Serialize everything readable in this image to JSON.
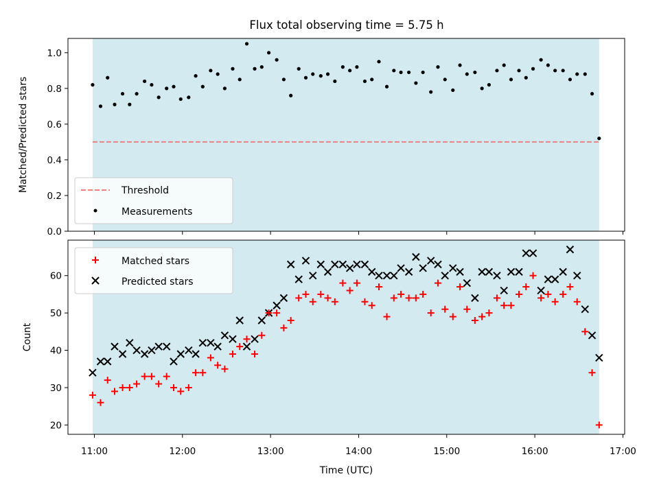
{
  "chart_data": {
    "type": "scatter",
    "title": "Flux total observing time = 5.75 h",
    "xlabel": "Time (UTC)",
    "x_tick_labels": [
      "11:00",
      "12:00",
      "13:00",
      "14:00",
      "15:00",
      "16:00",
      "17:00"
    ],
    "x_tick_hours": [
      11,
      12,
      13,
      14,
      15,
      16,
      17
    ],
    "xlim_hours": [
      10.7,
      17.02
    ],
    "observing_window_hours": [
      10.98,
      16.73
    ],
    "colors": {
      "window": "#d3eaf0",
      "threshold": "#f08080",
      "measurements": "#000000",
      "matched": "#ff0000",
      "predicted": "#000000"
    },
    "panels": [
      {
        "ylabel": "Matched/Predicted stars",
        "ylim": [
          0,
          1.08
        ],
        "yticks": [
          0.0,
          0.2,
          0.4,
          0.6,
          0.8,
          1.0
        ],
        "y_tick_labels": [
          "0.0",
          "0.2",
          "0.4",
          "0.6",
          "0.8",
          "1.0"
        ],
        "legend": {
          "position": "lower-left",
          "entries": [
            {
              "label": "Threshold",
              "marker": "dashed-line"
            },
            {
              "label": "Measurements",
              "marker": "dot"
            }
          ]
        },
        "threshold": 0.5,
        "measurements": {
          "x_hours": [
            10.98,
            11.07,
            11.15,
            11.23,
            11.32,
            11.4,
            11.48,
            11.57,
            11.65,
            11.73,
            11.82,
            11.9,
            11.98,
            12.07,
            12.15,
            12.23,
            12.32,
            12.4,
            12.48,
            12.57,
            12.65,
            12.73,
            12.82,
            12.9,
            12.98,
            13.07,
            13.15,
            13.23,
            13.32,
            13.4,
            13.48,
            13.57,
            13.65,
            13.73,
            13.82,
            13.9,
            13.98,
            14.07,
            14.15,
            14.23,
            14.32,
            14.4,
            14.48,
            14.57,
            14.65,
            14.73,
            14.82,
            14.9,
            14.98,
            15.07,
            15.15,
            15.23,
            15.32,
            15.4,
            15.48,
            15.57,
            15.65,
            15.73,
            15.82,
            15.9,
            15.98,
            16.07,
            16.15,
            16.23,
            16.32,
            16.4,
            16.48,
            16.57,
            16.65,
            16.73
          ],
          "y": [
            0.82,
            0.7,
            0.86,
            0.71,
            0.77,
            0.71,
            0.77,
            0.84,
            0.82,
            0.75,
            0.8,
            0.81,
            0.74,
            0.75,
            0.87,
            0.81,
            0.9,
            0.88,
            0.8,
            0.91,
            0.85,
            1.05,
            0.91,
            0.92,
            1.0,
            0.96,
            0.85,
            0.76,
            0.91,
            0.86,
            0.88,
            0.87,
            0.88,
            0.84,
            0.92,
            0.9,
            0.92,
            0.84,
            0.85,
            0.95,
            0.81,
            0.9,
            0.89,
            0.89,
            0.83,
            0.89,
            0.78,
            0.92,
            0.85,
            0.79,
            0.93,
            0.88,
            0.89,
            0.8,
            0.82,
            0.9,
            0.93,
            0.85,
            0.9,
            0.86,
            0.91,
            0.96,
            0.93,
            0.9,
            0.9,
            0.85,
            0.88,
            0.88,
            0.77,
            0.52
          ]
        }
      },
      {
        "ylabel": "Count",
        "ylim": [
          17.5,
          69.5
        ],
        "yticks": [
          20,
          30,
          40,
          50,
          60
        ],
        "y_tick_labels": [
          "20",
          "30",
          "40",
          "50",
          "60"
        ],
        "legend": {
          "position": "upper-left",
          "entries": [
            {
              "label": "Matched stars",
              "marker": "plus"
            },
            {
              "label": "Predicted stars",
              "marker": "x"
            }
          ]
        },
        "series": [
          {
            "name": "Matched stars",
            "marker": "plus",
            "x_hours": [
              10.98,
              11.07,
              11.15,
              11.23,
              11.32,
              11.4,
              11.48,
              11.57,
              11.65,
              11.73,
              11.82,
              11.9,
              11.98,
              12.07,
              12.15,
              12.23,
              12.32,
              12.4,
              12.48,
              12.57,
              12.65,
              12.73,
              12.82,
              12.9,
              12.98,
              13.07,
              13.15,
              13.23,
              13.32,
              13.4,
              13.48,
              13.57,
              13.65,
              13.73,
              13.82,
              13.9,
              13.98,
              14.07,
              14.15,
              14.23,
              14.32,
              14.4,
              14.48,
              14.57,
              14.65,
              14.73,
              14.82,
              14.9,
              14.98,
              15.07,
              15.15,
              15.23,
              15.32,
              15.4,
              15.48,
              15.57,
              15.65,
              15.73,
              15.82,
              15.9,
              15.98,
              16.07,
              16.15,
              16.23,
              16.32,
              16.4,
              16.48,
              16.57,
              16.65,
              16.73
            ],
            "values": [
              28,
              26,
              32,
              29,
              30,
              30,
              31,
              33,
              33,
              31,
              33,
              30,
              29,
              30,
              34,
              34,
              38,
              36,
              35,
              39,
              41,
              43,
              39,
              44,
              50,
              50,
              46,
              48,
              54,
              55,
              53,
              55,
              54,
              53,
              58,
              56,
              58,
              53,
              52,
              57,
              49,
              54,
              55,
              54,
              54,
              55,
              50,
              58,
              51,
              49,
              57,
              51,
              48,
              49,
              50,
              54,
              52,
              52,
              55,
              57,
              60,
              54,
              55,
              53,
              55,
              57,
              53,
              45,
              34,
              20
            ]
          },
          {
            "name": "Predicted stars",
            "marker": "x",
            "x_hours": [
              10.98,
              11.07,
              11.15,
              11.23,
              11.32,
              11.4,
              11.48,
              11.57,
              11.65,
              11.73,
              11.82,
              11.9,
              11.98,
              12.07,
              12.15,
              12.23,
              12.32,
              12.4,
              12.48,
              12.57,
              12.65,
              12.73,
              12.82,
              12.9,
              12.98,
              13.07,
              13.15,
              13.23,
              13.32,
              13.4,
              13.48,
              13.57,
              13.65,
              13.73,
              13.82,
              13.9,
              13.98,
              14.07,
              14.15,
              14.23,
              14.32,
              14.4,
              14.48,
              14.57,
              14.65,
              14.73,
              14.82,
              14.9,
              14.98,
              15.07,
              15.15,
              15.23,
              15.32,
              15.4,
              15.48,
              15.57,
              15.65,
              15.73,
              15.82,
              15.9,
              15.98,
              16.07,
              16.15,
              16.23,
              16.32,
              16.4,
              16.48,
              16.57,
              16.65,
              16.73
            ],
            "values": [
              34,
              37,
              37,
              41,
              39,
              42,
              40,
              39,
              40,
              41,
              41,
              37,
              39,
              40,
              39,
              42,
              42,
              41,
              44,
              43,
              48,
              41,
              43,
              48,
              50,
              52,
              54,
              63,
              59,
              64,
              60,
              63,
              61,
              63,
              63,
              62,
              63,
              63,
              61,
              60,
              60,
              60,
              62,
              61,
              65,
              62,
              64,
              63,
              60,
              62,
              61,
              58,
              54,
              61,
              61,
              60,
              56,
              61,
              61,
              66,
              66,
              56,
              59,
              59,
              61,
              67,
              60,
              51,
              44,
              38
            ]
          }
        ]
      }
    ]
  }
}
